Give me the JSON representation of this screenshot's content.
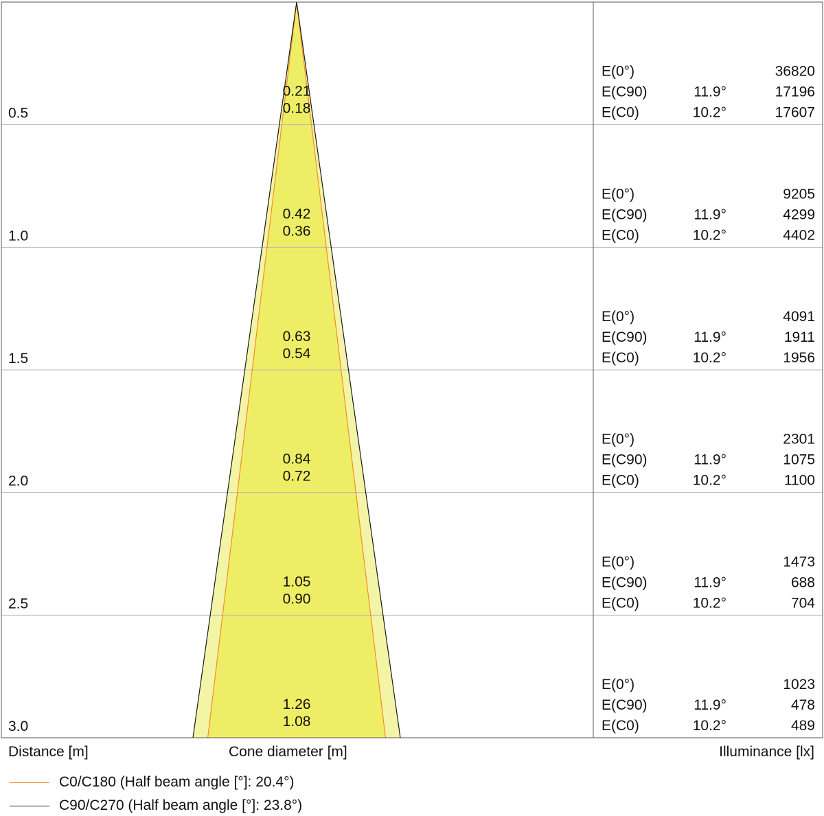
{
  "chart_data": {
    "type": "cone-diagram",
    "distances": [
      "0.5",
      "1.0",
      "1.5",
      "2.0",
      "2.5",
      "3.0"
    ],
    "distance_values": [
      0.5,
      1.0,
      1.5,
      2.0,
      2.5,
      3.0
    ],
    "cone_diameter_c90": [
      "0.21",
      "0.42",
      "0.63",
      "0.84",
      "1.05",
      "1.26"
    ],
    "cone_diameter_c0": [
      "0.18",
      "0.36",
      "0.54",
      "0.72",
      "0.90",
      "1.08"
    ],
    "cone_diameter_c90_values": [
      0.21,
      0.42,
      0.63,
      0.84,
      1.05,
      1.26
    ],
    "cone_diameter_c0_values": [
      0.18,
      0.36,
      0.54,
      0.72,
      0.9,
      1.08
    ],
    "illuminance_rows": [
      {
        "e0_label": "E(0°)",
        "e0": "36820",
        "c90_label": "E(C90)",
        "c90_angle": "11.9°",
        "c90": "17196",
        "c0_label": "E(C0)",
        "c0_angle": "10.2°",
        "c0": "17607"
      },
      {
        "e0_label": "E(0°)",
        "e0": "9205",
        "c90_label": "E(C90)",
        "c90_angle": "11.9°",
        "c90": "4299",
        "c0_label": "E(C0)",
        "c0_angle": "10.2°",
        "c0": "4402"
      },
      {
        "e0_label": "E(0°)",
        "e0": "4091",
        "c90_label": "E(C90)",
        "c90_angle": "11.9°",
        "c90": "1911",
        "c0_label": "E(C0)",
        "c0_angle": "10.2°",
        "c0": "1956"
      },
      {
        "e0_label": "E(0°)",
        "e0": "2301",
        "c90_label": "E(C90)",
        "c90_angle": "11.9°",
        "c90": "1075",
        "c0_label": "E(C0)",
        "c0_angle": "10.2°",
        "c0": "1100"
      },
      {
        "e0_label": "E(0°)",
        "e0": "1473",
        "c90_label": "E(C90)",
        "c90_angle": "11.9°",
        "c90": "688",
        "c0_label": "E(C0)",
        "c0_angle": "10.2°",
        "c0": "704"
      },
      {
        "e0_label": "E(0°)",
        "e0": "1023",
        "c90_label": "E(C90)",
        "c90_angle": "11.9°",
        "c90": "478",
        "c0_label": "E(C0)",
        "c0_angle": "10.2°",
        "c0": "489"
      }
    ],
    "xlabel_distance": "Distance [m]",
    "xlabel_cone": "Cone diameter [m]",
    "xlabel_illuminance": "Illuminance [lx]",
    "legend": [
      {
        "label": "C0/C180 (Half beam angle [°]: 20.4°)",
        "color": "#f28c28"
      },
      {
        "label": "C90/C270 (Half beam angle [°]: 23.8°)",
        "color": "#1a1a1a"
      }
    ],
    "colors": {
      "inner_cone": "#eeee66",
      "outer_cone": "#f4f4a6",
      "grid": "#b8b8b8",
      "frame": "#555555",
      "c0_line": "#f28c28",
      "c90_line": "#1a1a1a"
    }
  }
}
